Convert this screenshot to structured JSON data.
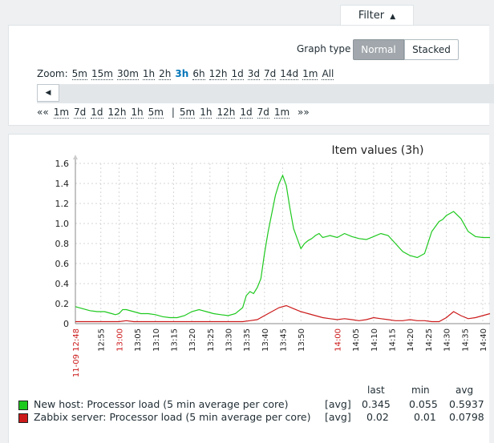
{
  "filter_tab": {
    "label": "Filter",
    "icon": "triangle-up-icon"
  },
  "graph_type": {
    "label": "Graph type",
    "options": [
      "Normal",
      "Stacked"
    ],
    "selected": "Normal"
  },
  "zoom": {
    "label": "Zoom:",
    "options": [
      "5m",
      "15m",
      "30m",
      "1h",
      "2h",
      "3h",
      "6h",
      "12h",
      "1d",
      "3d",
      "7d",
      "14d",
      "1m",
      "All"
    ],
    "active": "3h"
  },
  "scroll_left_icon": "triangle-left-icon",
  "period_nav": {
    "back_label": "««",
    "back_items": [
      "1m",
      "7d",
      "1d",
      "12h",
      "1h",
      "5m"
    ],
    "separator": "|",
    "forward_items": [
      "5m",
      "1h",
      "12h",
      "1d",
      "7d",
      "1m"
    ],
    "forward_label": "»»"
  },
  "chart_data": {
    "type": "line",
    "title": "Item values (3h)",
    "y_ticks": [
      "0",
      "0.2",
      "0.4",
      "0.6",
      "0.8",
      "1.0",
      "1.2",
      "1.4",
      "1.6"
    ],
    "ylim": [
      0,
      1.6
    ],
    "x_ticks": [
      "11-09 12:48",
      "12:55",
      "13:00",
      "13:05",
      "13:10",
      "13:15",
      "13:20",
      "13:25",
      "13:30",
      "13:35",
      "13:40",
      "13:45",
      "13:50",
      "14:00",
      "14:05",
      "14:10",
      "14:15",
      "14:20",
      "14:25",
      "14:30",
      "14:35",
      "14:40"
    ],
    "x_tick_minutes": [
      0,
      7,
      12,
      17,
      22,
      27,
      32,
      37,
      42,
      47,
      52,
      57,
      62,
      72,
      77,
      82,
      87,
      92,
      97,
      102,
      107,
      112
    ],
    "x_highlight": [
      "11-09 12:48",
      "13:00",
      "14:00"
    ],
    "grid": true,
    "series": [
      {
        "name": "New host: Processor load (5 min average per core)",
        "color": "#1ec91e",
        "x": [
          0,
          2,
          4,
          6,
          8,
          10,
          11,
          12,
          13,
          14,
          16,
          18,
          20,
          22,
          24,
          26,
          28,
          30,
          32,
          34,
          36,
          38,
          40,
          42,
          44,
          46,
          47,
          48,
          49,
          50,
          51,
          52,
          53,
          54,
          55,
          56,
          57,
          58,
          59,
          60,
          61,
          62,
          63,
          64,
          65,
          66,
          67,
          68,
          69,
          70,
          72,
          74,
          76,
          78,
          80,
          82,
          84,
          86,
          88,
          90,
          92,
          94,
          96,
          98,
          100,
          101,
          102,
          103,
          104,
          106,
          108,
          110,
          112,
          114
        ],
        "y": [
          0.17,
          0.15,
          0.13,
          0.12,
          0.12,
          0.1,
          0.09,
          0.1,
          0.14,
          0.14,
          0.12,
          0.1,
          0.1,
          0.09,
          0.07,
          0.06,
          0.06,
          0.08,
          0.12,
          0.14,
          0.12,
          0.1,
          0.09,
          0.08,
          0.1,
          0.16,
          0.28,
          0.32,
          0.3,
          0.36,
          0.45,
          0.7,
          0.92,
          1.1,
          1.28,
          1.4,
          1.48,
          1.38,
          1.15,
          0.95,
          0.85,
          0.75,
          0.8,
          0.83,
          0.85,
          0.88,
          0.9,
          0.86,
          0.87,
          0.88,
          0.86,
          0.9,
          0.87,
          0.85,
          0.84,
          0.87,
          0.9,
          0.88,
          0.8,
          0.72,
          0.68,
          0.66,
          0.7,
          0.92,
          1.02,
          1.04,
          1.08,
          1.1,
          1.12,
          1.05,
          0.92,
          0.87,
          0.86,
          0.86
        ]
      },
      {
        "name": "Zabbix server: Processor load (5 min average per core)",
        "color": "#cc1a1a",
        "x": [
          0,
          2,
          4,
          6,
          8,
          10,
          12,
          14,
          16,
          18,
          20,
          22,
          24,
          26,
          28,
          30,
          32,
          34,
          36,
          38,
          40,
          42,
          44,
          46,
          48,
          50,
          52,
          54,
          56,
          58,
          60,
          62,
          64,
          66,
          68,
          70,
          72,
          74,
          76,
          78,
          80,
          82,
          84,
          86,
          88,
          90,
          92,
          94,
          96,
          98,
          100,
          102,
          104,
          106,
          108,
          110,
          112,
          114
        ],
        "y": [
          0.02,
          0.02,
          0.02,
          0.02,
          0.02,
          0.02,
          0.02,
          0.03,
          0.02,
          0.02,
          0.02,
          0.02,
          0.02,
          0.02,
          0.02,
          0.02,
          0.02,
          0.02,
          0.02,
          0.02,
          0.02,
          0.02,
          0.02,
          0.02,
          0.03,
          0.04,
          0.08,
          0.12,
          0.16,
          0.18,
          0.15,
          0.12,
          0.1,
          0.08,
          0.06,
          0.05,
          0.04,
          0.05,
          0.04,
          0.03,
          0.04,
          0.06,
          0.05,
          0.04,
          0.03,
          0.03,
          0.04,
          0.03,
          0.03,
          0.02,
          0.02,
          0.06,
          0.12,
          0.08,
          0.05,
          0.06,
          0.08,
          0.1
        ]
      }
    ]
  },
  "legend": {
    "headers": [
      "last",
      "min",
      "avg"
    ],
    "rows": [
      {
        "name": "New host: Processor load (5 min average per core)",
        "func": "[avg]",
        "last": "0.345",
        "min": "0.055",
        "avg": "0.5937",
        "color": "#1ec91e"
      },
      {
        "name": "Zabbix server: Processor load (5 min average per core)",
        "func": "[avg]",
        "last": "0.02",
        "min": "0.01",
        "avg": "0.0798",
        "color": "#cc1a1a"
      }
    ]
  }
}
